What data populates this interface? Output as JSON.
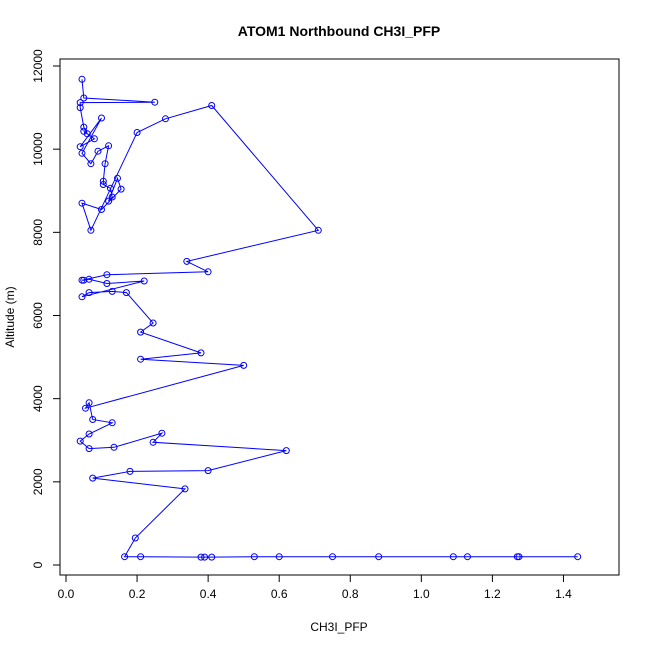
{
  "chart_data": {
    "type": "line",
    "title": "ATOM1 Northbound CH3I_PFP",
    "xlabel": "CH3I_PFP",
    "ylabel": "Altitude (m)",
    "xlim": [
      0.0,
      1.5
    ],
    "ylim": [
      0,
      12000
    ],
    "x_ticks": [
      0.0,
      0.2,
      0.4,
      0.6,
      0.8,
      1.0,
      1.2,
      1.4
    ],
    "x_tick_labels": [
      "0.0",
      "0.2",
      "0.4",
      "0.6",
      "0.8",
      "1.0",
      "1.2",
      "1.4"
    ],
    "y_ticks": [
      0,
      2000,
      4000,
      6000,
      8000,
      10000,
      12000
    ],
    "y_tick_labels": [
      "0",
      "2000",
      "4000",
      "6000",
      "8000",
      "10000",
      "12000"
    ],
    "grid": false,
    "legend": "none",
    "series": [
      {
        "color": "#0000ff",
        "marker": "open-circle",
        "points": [
          [
            0.045,
            11680
          ],
          [
            0.05,
            11230
          ],
          [
            0.25,
            11130
          ],
          [
            0.04,
            11120
          ],
          [
            0.04,
            11000
          ],
          [
            0.05,
            10530
          ],
          [
            0.06,
            10370
          ],
          [
            0.05,
            10430
          ],
          [
            0.08,
            10250
          ],
          [
            0.04,
            10060
          ],
          [
            0.1,
            10750
          ],
          [
            0.045,
            9900
          ],
          [
            0.07,
            9650
          ],
          [
            0.09,
            9950
          ],
          [
            0.12,
            10080
          ],
          [
            0.11,
            9650
          ],
          [
            0.105,
            9230
          ],
          [
            0.105,
            9150
          ],
          [
            0.125,
            9060
          ],
          [
            0.13,
            8850
          ],
          [
            0.12,
            8750
          ],
          [
            0.145,
            9300
          ],
          [
            0.155,
            9040
          ],
          [
            0.1,
            8550
          ],
          [
            0.045,
            8700
          ],
          [
            0.07,
            8050
          ],
          [
            0.2,
            10400
          ],
          [
            0.28,
            10730
          ],
          [
            0.41,
            11050
          ],
          [
            0.71,
            8050
          ],
          [
            0.34,
            7300
          ],
          [
            0.4,
            7050
          ],
          [
            0.115,
            6980
          ],
          [
            0.045,
            6850
          ],
          [
            0.05,
            6850
          ],
          [
            0.065,
            6870
          ],
          [
            0.115,
            6770
          ],
          [
            0.22,
            6830
          ],
          [
            0.045,
            6450
          ],
          [
            0.065,
            6550
          ],
          [
            0.13,
            6580
          ],
          [
            0.17,
            6550
          ],
          [
            0.245,
            5820
          ],
          [
            0.21,
            5600
          ],
          [
            0.38,
            5100
          ],
          [
            0.21,
            4950
          ],
          [
            0.5,
            4800
          ],
          [
            0.055,
            3770
          ],
          [
            0.065,
            3900
          ],
          [
            0.075,
            3500
          ],
          [
            0.13,
            3420
          ],
          [
            0.065,
            3150
          ],
          [
            0.04,
            2980
          ],
          [
            0.065,
            2800
          ],
          [
            0.135,
            2830
          ],
          [
            0.27,
            3170
          ],
          [
            0.245,
            2950
          ],
          [
            0.62,
            2750
          ],
          [
            0.4,
            2270
          ],
          [
            0.18,
            2250
          ],
          [
            0.075,
            2090
          ],
          [
            0.335,
            1830
          ],
          [
            0.195,
            650
          ],
          [
            0.165,
            200
          ],
          [
            0.21,
            200
          ],
          [
            0.38,
            190
          ],
          [
            0.39,
            190
          ],
          [
            0.41,
            190
          ],
          [
            0.53,
            200
          ],
          [
            0.6,
            200
          ],
          [
            0.75,
            200
          ],
          [
            0.88,
            200
          ],
          [
            1.09,
            200
          ],
          [
            1.13,
            200
          ],
          [
            1.27,
            200
          ],
          [
            1.275,
            200
          ],
          [
            1.44,
            200
          ]
        ]
      }
    ]
  }
}
